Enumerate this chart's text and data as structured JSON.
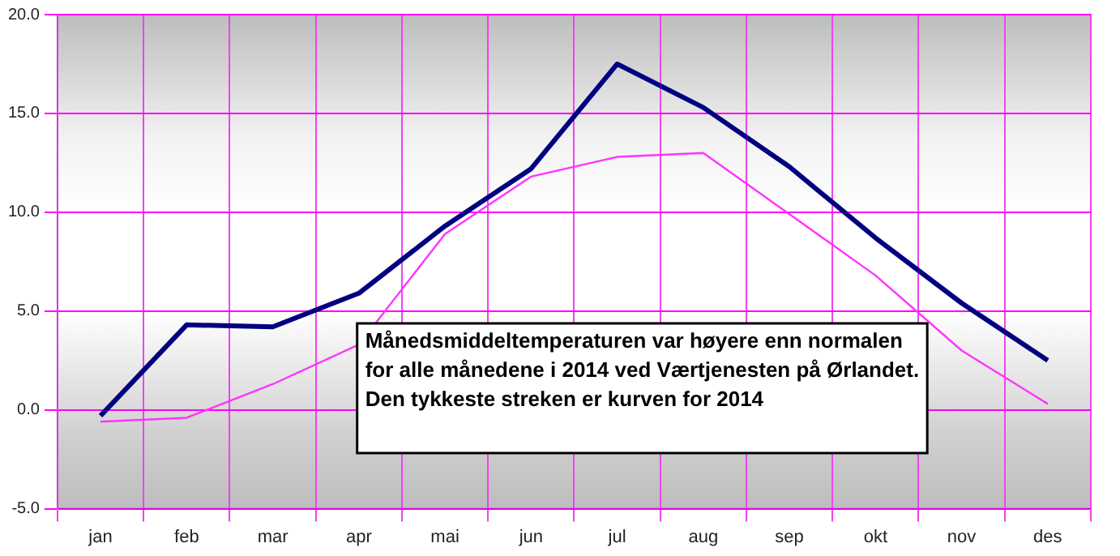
{
  "chart_data": {
    "type": "line",
    "categories": [
      "jan",
      "feb",
      "mar",
      "apr",
      "mai",
      "jun",
      "jul",
      "aug",
      "sep",
      "okt",
      "nov",
      "des"
    ],
    "series": [
      {
        "color": "#000080",
        "values": [
          -0.3,
          4.3,
          4.2,
          5.9,
          9.3,
          12.2,
          17.5,
          15.3,
          12.3,
          8.7,
          5.4,
          2.5
        ]
      },
      {
        "color": "#ff33ff",
        "values": [
          -0.6,
          -0.4,
          1.3,
          3.3,
          8.9,
          11.8,
          12.8,
          13.0,
          9.9,
          6.8,
          3.0,
          0.3
        ]
      }
    ],
    "ylim": [
      -5,
      20
    ],
    "yticks": [
      {
        "value": -5,
        "label": "-5.0"
      },
      {
        "value": 0,
        "label": "0.0"
      },
      {
        "value": 5,
        "label": "5.0"
      },
      {
        "value": 10,
        "label": "10.0"
      },
      {
        "value": 15,
        "label": "15.0"
      },
      {
        "value": 20,
        "label": "20.0"
      }
    ],
    "grid": true,
    "legend": false,
    "marker": "none",
    "line_style": "solid",
    "annotations": [
      "Månedsmiddeltemperaturen var høyere enn normalen\nfor alle månedene i 2014 ved Værtjenesten på Ørlandet.\nDen tykkeste streken er kurven for 2014"
    ]
  }
}
